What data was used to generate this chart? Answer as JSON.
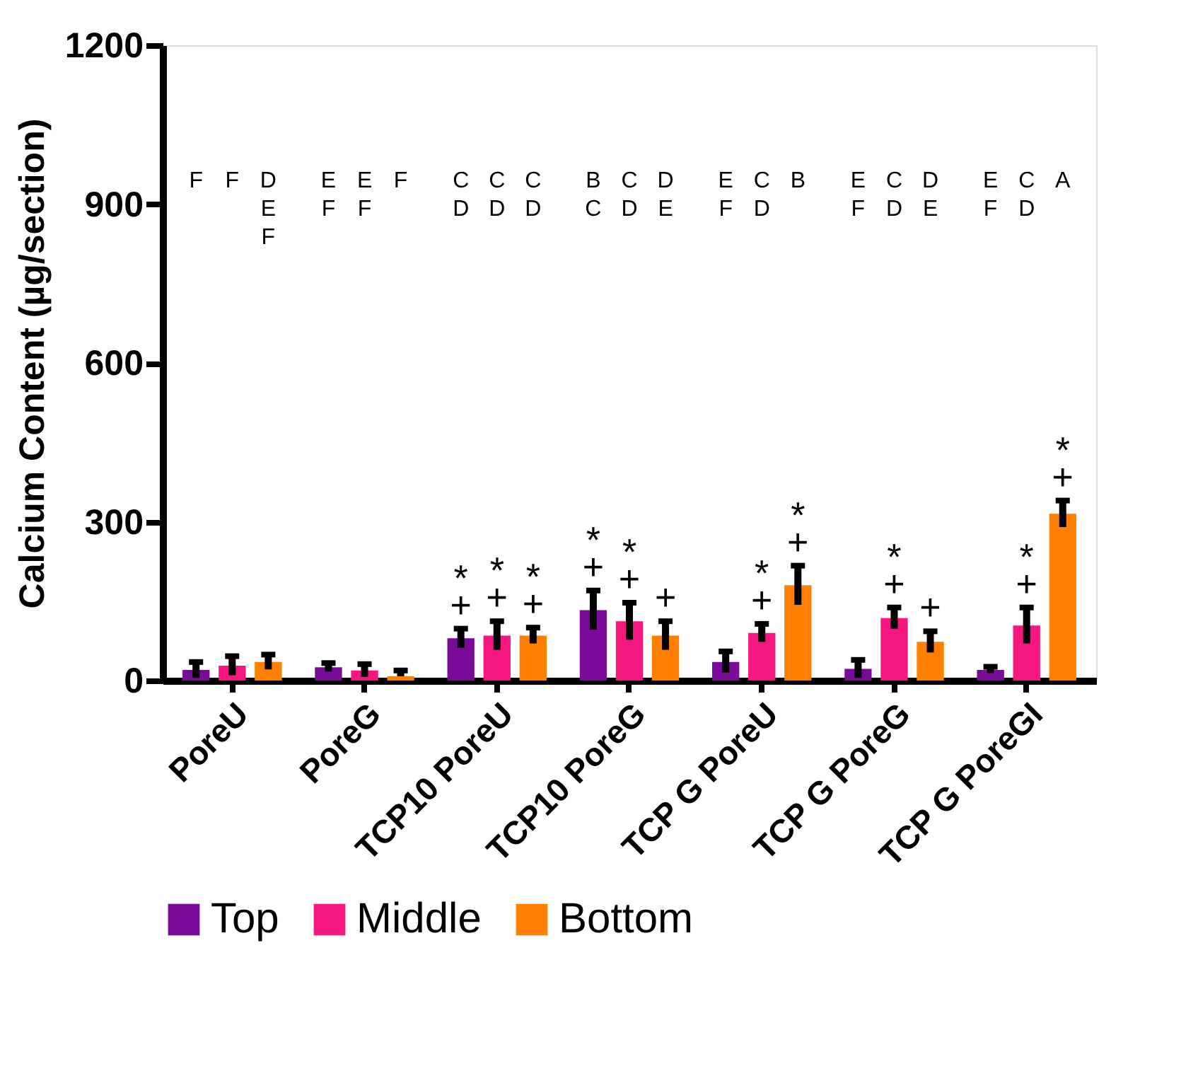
{
  "chart_data": {
    "type": "bar",
    "ylabel": "Calcium Content (µg/section)",
    "categories": [
      "PoreU",
      "PoreG",
      "TCP10 PoreU",
      "TCP10 PoreG",
      "TCP G PoreU",
      "TCP G PoreG",
      "TCP G PoreGI"
    ],
    "series": [
      {
        "name": "Top",
        "color": "#7a0a9a",
        "values": [
          20,
          25,
          80,
          133,
          35,
          22,
          20
        ],
        "errors": [
          15,
          8,
          18,
          37,
          20,
          17,
          6
        ],
        "value_labels": [
          null,
          null,
          "*\n+",
          "*\n+",
          null,
          null,
          null
        ]
      },
      {
        "name": "Middle",
        "color": "#f5177f",
        "values": [
          28,
          19,
          85,
          112,
          90,
          118,
          104
        ],
        "errors": [
          18,
          12,
          27,
          35,
          17,
          20,
          34
        ],
        "value_labels": [
          null,
          null,
          "*\n+",
          "*\n+",
          "*\n+",
          "*\n+",
          "*\n+"
        ]
      },
      {
        "name": "Bottom",
        "color": "#ff8000",
        "values": [
          35,
          8,
          85,
          85,
          180,
          73,
          315
        ],
        "errors": [
          14,
          [
            8,
            19
          ],
          15,
          27,
          37,
          20,
          25
        ],
        "value_labels": [
          null,
          null,
          "*\n+",
          "+",
          "*\n+",
          "+",
          "*\n+"
        ]
      }
    ],
    "ylim": [
      0,
      1200
    ],
    "yticks": [
      0,
      300,
      600,
      900,
      1200
    ],
    "grid": false,
    "legend": "bottom",
    "annotations": [
      "F",
      "F",
      "D\nE\nF",
      "E\nF",
      "E\nF",
      "F",
      "C\nD",
      "C\nD",
      "C\nD",
      "B\nC",
      "C\nD",
      "D\nE",
      "E\nF",
      "C\nD",
      "B",
      "E\nF",
      "C\nD",
      "D\nE",
      "E\nF",
      "C\nD",
      "A"
    ]
  }
}
